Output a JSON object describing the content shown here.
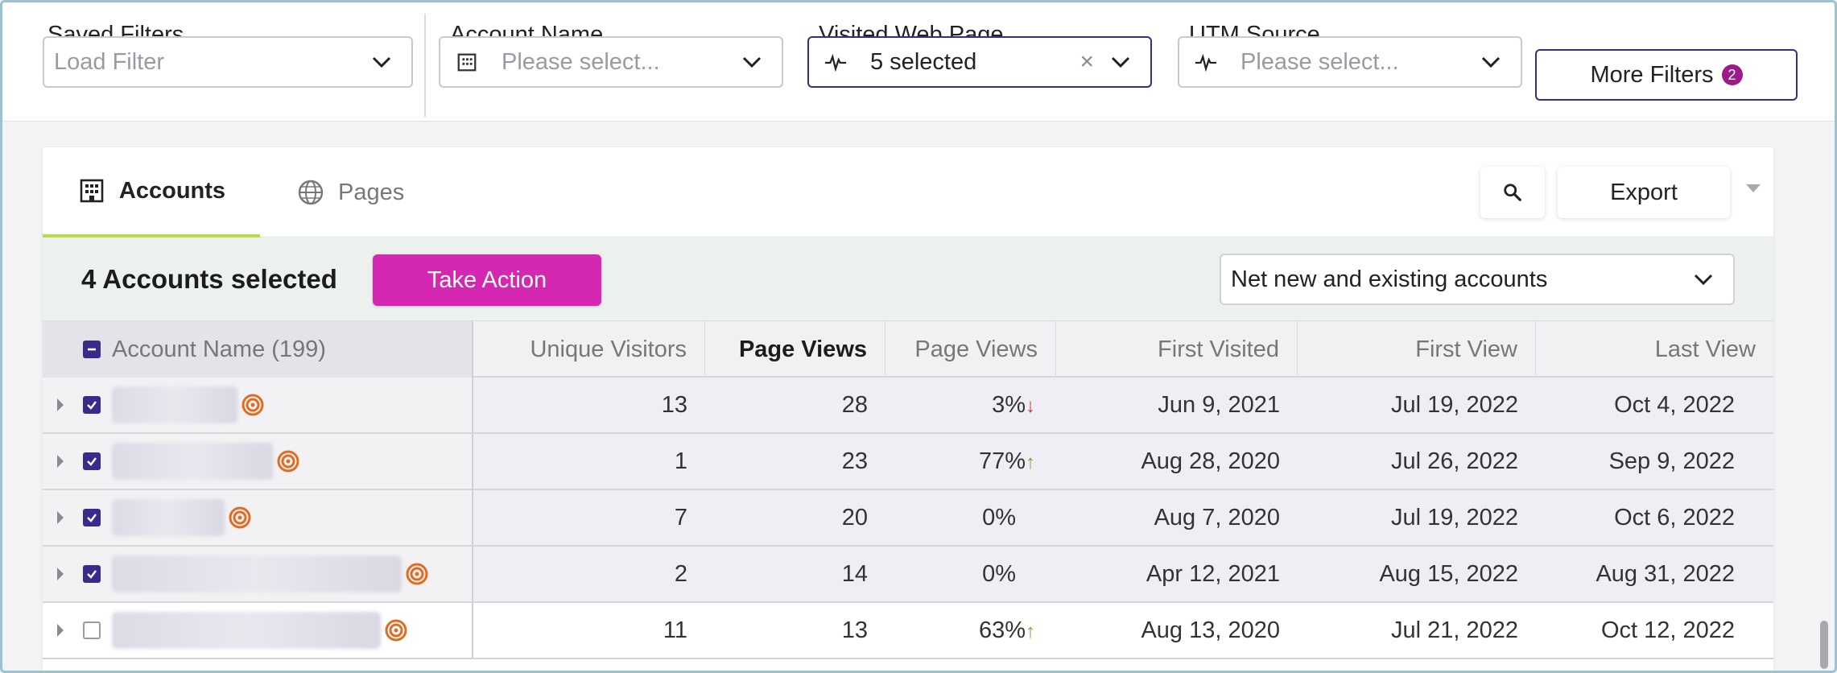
{
  "filters": {
    "saved": {
      "label": "Saved Filters",
      "placeholder": "Load Filter"
    },
    "account_name": {
      "label": "Account Name",
      "placeholder": "Please select..."
    },
    "visited_web_page": {
      "label": "Visited Web Page",
      "value": "5 selected",
      "clear": "×"
    },
    "utm_source": {
      "label": "UTM Source",
      "placeholder": "Please select..."
    },
    "more_filters": {
      "label": "More Filters",
      "count": "2"
    }
  },
  "tabs": [
    {
      "label": "Accounts",
      "icon": "building-icon",
      "active": true
    },
    {
      "label": "Pages",
      "icon": "globe-icon",
      "active": false
    }
  ],
  "toolbar": {
    "export_label": "Export"
  },
  "action_bar": {
    "selected_text": "4 Accounts selected",
    "take_action_label": "Take Action",
    "account_filter_value": "Net new and existing accounts"
  },
  "table": {
    "columns": [
      "Account Name (199)",
      "Unique Visitors",
      "Page Views",
      "Page Views",
      "First Visited",
      "First View",
      "Last View"
    ],
    "rows": [
      {
        "selected": true,
        "unique_visitors": "13",
        "page_views": "28",
        "page_views_pct": "3%",
        "trend": "down",
        "first_visited": "Jun 9, 2021",
        "first_view": "Jul 19, 2022",
        "last_view": "Oct 4, 2022"
      },
      {
        "selected": true,
        "unique_visitors": "1",
        "page_views": "23",
        "page_views_pct": "77%",
        "trend": "up",
        "first_visited": "Aug 28, 2020",
        "first_view": "Jul 26, 2022",
        "last_view": "Sep 9, 2022"
      },
      {
        "selected": true,
        "unique_visitors": "7",
        "page_views": "20",
        "page_views_pct": "0%",
        "trend": "none",
        "first_visited": "Aug 7, 2020",
        "first_view": "Jul 19, 2022",
        "last_view": "Oct 6, 2022"
      },
      {
        "selected": true,
        "unique_visitors": "2",
        "page_views": "14",
        "page_views_pct": "0%",
        "trend": "none",
        "first_visited": "Apr 12, 2021",
        "first_view": "Aug 15, 2022",
        "last_view": "Aug 31, 2022"
      },
      {
        "selected": false,
        "unique_visitors": "11",
        "page_views": "13",
        "page_views_pct": "63%",
        "trend": "up",
        "first_visited": "Aug 13, 2020",
        "first_view": "Jul 21, 2022",
        "last_view": "Oct 12, 2022"
      }
    ]
  },
  "colors": {
    "primary": "#3a2a8c",
    "accent": "#d427b2",
    "tab_underline": "#b8dd45",
    "trend_down": "#d8322e",
    "trend_up": "#7fa83a",
    "target": "#e36b1f"
  }
}
